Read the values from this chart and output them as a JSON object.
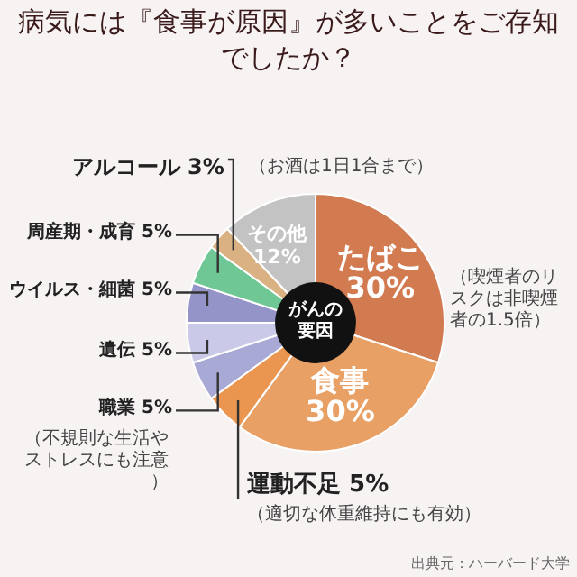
{
  "chart_data": {
    "type": "donut",
    "title": "病気には『食事が原因』が多いことをご存知でしたか？",
    "categories": [
      "たばこ",
      "食事",
      "運動不足",
      "職業",
      "遺伝",
      "ウイルス・細菌",
      "周産期・成育",
      "アルコール",
      "その他"
    ],
    "values": [
      30,
      30,
      5,
      5,
      5,
      5,
      5,
      3,
      12
    ],
    "value_labels": [
      "30%",
      "30%",
      "5%",
      "5%",
      "5%",
      "5%",
      "5%",
      "3%",
      "12%"
    ],
    "colors": [
      "#d27a50",
      "#e8a065",
      "#ea9650",
      "#a9a9d6",
      "#cacae8",
      "#9494c8",
      "#6fc795",
      "#d9b183",
      "#c3c3c3"
    ],
    "annotations": [
      "（お酒は1日1合まで）",
      "（喫煙者のリスクは非喫煙者の1.5倍）",
      "（適切な体重維持にも有効）",
      "（不規則な生活やストレスにも注意）",
      "がんの要因",
      "出典元：ハーバード大学"
    ],
    "legend": false
  }
}
